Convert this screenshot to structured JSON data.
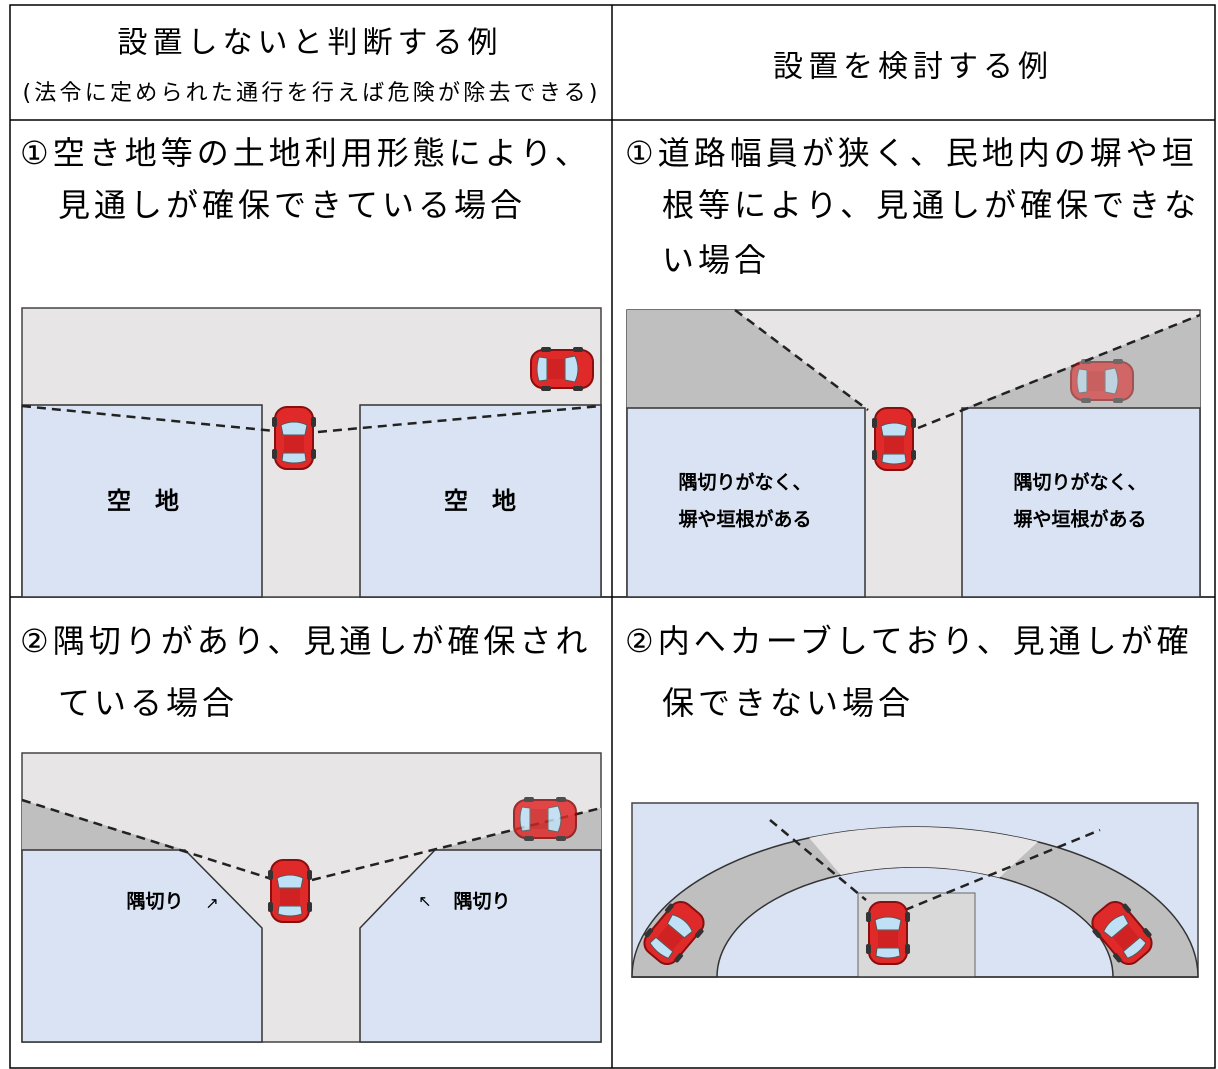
{
  "header": {
    "left_title": "設置しないと判断する例",
    "left_subtitle": "(法令に定められた通行を行えば危険が除去できる)",
    "right_title": "設置を検討する例"
  },
  "rows": [
    {
      "left": {
        "lines": [
          "①空き地等の土地利用形態により、",
          "見通しが確保できている場合"
        ],
        "labels": [
          "空　地",
          "空　地"
        ]
      },
      "right": {
        "lines": [
          "①道路幅員が狭く、民地内の塀や垣",
          "根等により、見通しが確保できな",
          "い場合"
        ],
        "labels": [
          "隅切りがなく、",
          "塀や垣根がある",
          "隅切りがなく、",
          "塀や垣根がある"
        ]
      }
    },
    {
      "left": {
        "lines": [
          "②隅切りがあり、見通しが確保され",
          "ている場合"
        ],
        "labels": [
          "隅切り",
          "↗",
          "↖",
          "隅切り"
        ]
      },
      "right": {
        "lines": [
          "②内へカーブしており、見通しが確",
          "保できない場合"
        ]
      }
    }
  ]
}
